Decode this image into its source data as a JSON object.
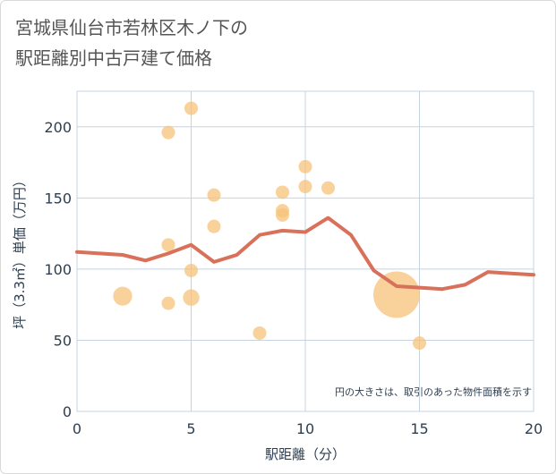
{
  "title": "宮城県仙台市若林区木ノ下の\n駅距離別中古戸建て価格",
  "chart_data": {
    "type": "scatter",
    "xlabel": "駅距離（分）",
    "ylabel": "坪（3.3㎡）単価（万円）",
    "xlim": [
      0,
      20
    ],
    "ylim": [
      0,
      225
    ],
    "xticks": [
      0,
      5,
      10,
      15,
      20
    ],
    "yticks": [
      0,
      50,
      100,
      150,
      200
    ],
    "grid": true,
    "note": "円の大きさは、取引のあった物件面積を示す",
    "colors": {
      "point": "#f5c27a",
      "line": "#d9705a",
      "grid": "#c5d3e0",
      "text": "#2d3e50"
    },
    "points": [
      {
        "x": 2,
        "y": 81,
        "size": 2
      },
      {
        "x": 4,
        "y": 196,
        "size": 1
      },
      {
        "x": 4,
        "y": 117,
        "size": 1
      },
      {
        "x": 4,
        "y": 76,
        "size": 1
      },
      {
        "x": 5,
        "y": 213,
        "size": 1
      },
      {
        "x": 5,
        "y": 99,
        "size": 1
      },
      {
        "x": 5,
        "y": 80,
        "size": 1.5
      },
      {
        "x": 6,
        "y": 152,
        "size": 1
      },
      {
        "x": 6,
        "y": 130,
        "size": 1
      },
      {
        "x": 8,
        "y": 55,
        "size": 1
      },
      {
        "x": 9,
        "y": 154,
        "size": 1
      },
      {
        "x": 9,
        "y": 141,
        "size": 1
      },
      {
        "x": 9,
        "y": 138,
        "size": 1
      },
      {
        "x": 10,
        "y": 172,
        "size": 1
      },
      {
        "x": 10,
        "y": 158,
        "size": 1
      },
      {
        "x": 11,
        "y": 157,
        "size": 1
      },
      {
        "x": 14,
        "y": 82,
        "size": 12
      },
      {
        "x": 15,
        "y": 48,
        "size": 1
      }
    ],
    "series": [
      {
        "type": "line",
        "x": [
          0,
          1,
          2,
          3,
          4,
          5,
          6,
          7,
          8,
          9,
          10,
          11,
          12,
          13,
          14,
          15,
          16,
          17,
          18,
          19,
          20
        ],
        "y": [
          112,
          111,
          110,
          106,
          111,
          117,
          105,
          110,
          124,
          127,
          126,
          136,
          124,
          99,
          88,
          87,
          86,
          89,
          98,
          97,
          96
        ]
      }
    ]
  }
}
